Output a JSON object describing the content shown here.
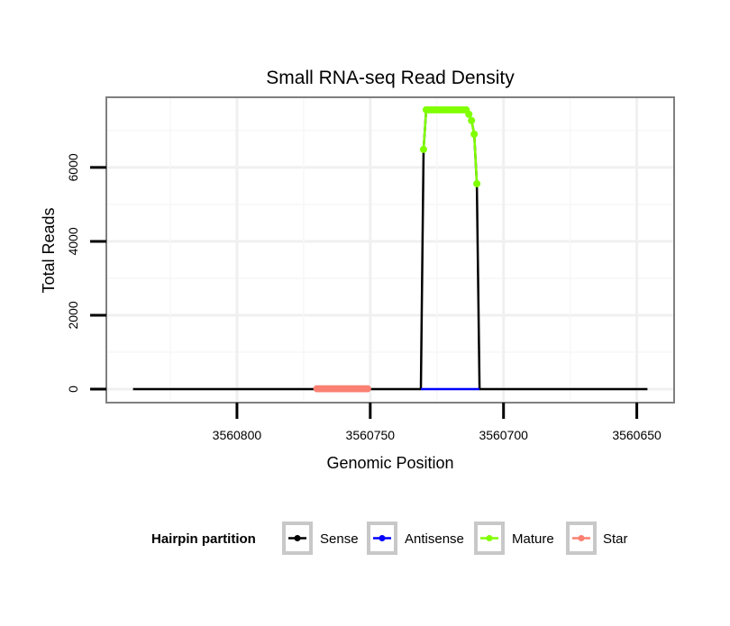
{
  "chart_data": {
    "type": "line",
    "title": "Small RNA-seq Read Density",
    "xlabel": "Genomic Position",
    "ylabel": "Total Reads",
    "xlim": [
      3560849,
      3560636
    ],
    "x_reversed": true,
    "ylim": [
      -366,
      7900
    ],
    "xticks": [
      3560800,
      3560750,
      3560700,
      3560650
    ],
    "xtick_labels": [
      "3560800",
      "3560750",
      "3560700",
      "3560650"
    ],
    "yticks": [
      0,
      2000,
      4000,
      6000
    ],
    "ytick_labels": [
      "0",
      "2000",
      "4000",
      "6000"
    ],
    "grid": true,
    "legend": {
      "title": "Hairpin partition",
      "placement": "bottom",
      "entries": [
        "Sense",
        "Antisense",
        "Mature",
        "Star"
      ]
    },
    "colors": {
      "Sense": "#000000",
      "Antisense": "#0000ff",
      "Mature": "#7fff00",
      "Star": "#fa8072"
    },
    "series": [
      {
        "name": "Sense",
        "line": true,
        "points": false,
        "x": [
          3560839,
          3560731,
          3560730,
          3560729,
          3560714,
          3560713,
          3560712,
          3560711,
          3560710,
          3560709,
          3560646
        ],
        "y": [
          0,
          0,
          6490,
          7560,
          7560,
          7440,
          7270,
          6900,
          5560,
          0,
          0
        ]
      },
      {
        "name": "Antisense",
        "line": true,
        "points": false,
        "x": [
          3560731,
          3560709
        ],
        "y": [
          0,
          0
        ]
      },
      {
        "name": "Mature",
        "line": true,
        "points": true,
        "x": [
          3560730,
          3560729,
          3560728,
          3560727,
          3560726,
          3560725,
          3560724,
          3560723,
          3560722,
          3560721,
          3560720,
          3560719,
          3560718,
          3560717,
          3560716,
          3560715,
          3560714,
          3560713,
          3560712,
          3560711,
          3560710
        ],
        "y": [
          6490,
          7560,
          7560,
          7560,
          7560,
          7560,
          7560,
          7560,
          7560,
          7560,
          7560,
          7560,
          7560,
          7560,
          7560,
          7560,
          7560,
          7440,
          7270,
          6900,
          5560
        ]
      },
      {
        "name": "Star",
        "line": true,
        "points": true,
        "x": [
          3560770,
          3560769,
          3560768,
          3560767,
          3560766,
          3560765,
          3560764,
          3560763,
          3560762,
          3560761,
          3560760,
          3560759,
          3560758,
          3560757,
          3560756,
          3560755,
          3560754,
          3560753,
          3560752,
          3560751
        ],
        "y": [
          10,
          10,
          10,
          10,
          10,
          10,
          10,
          10,
          10,
          10,
          10,
          10,
          10,
          10,
          10,
          10,
          10,
          10,
          10,
          10
        ]
      }
    ]
  }
}
